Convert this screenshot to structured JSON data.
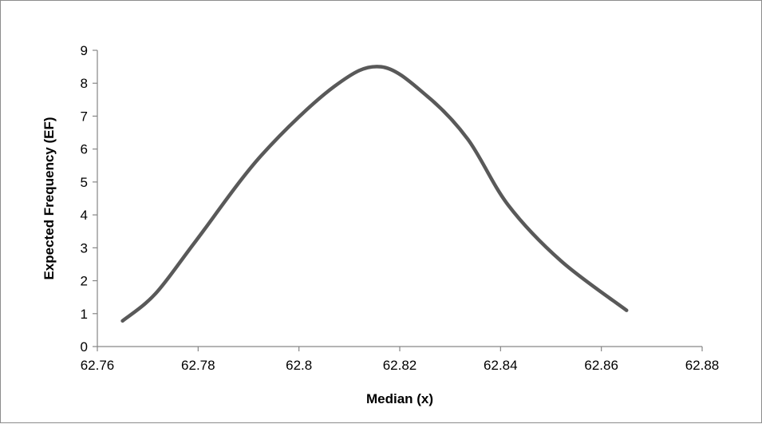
{
  "chart_data": {
    "type": "line",
    "title": "",
    "xlabel": "Median (x)",
    "ylabel": "Expected Frequency (EF)",
    "xlim": [
      62.76,
      62.88
    ],
    "ylim": [
      0,
      9
    ],
    "xticks": [
      62.76,
      62.78,
      62.8,
      62.82,
      62.84,
      62.86,
      62.88
    ],
    "xtick_labels": [
      "62.76",
      "62.78",
      "62.8",
      "62.82",
      "62.84",
      "62.86",
      "62.88"
    ],
    "yticks": [
      0,
      1,
      2,
      3,
      4,
      5,
      6,
      7,
      8,
      9
    ],
    "ytick_labels": [
      "0",
      "1",
      "2",
      "3",
      "4",
      "5",
      "6",
      "7",
      "8",
      "9"
    ],
    "grid": false,
    "legend": "none",
    "colors": {
      "line": "#595959",
      "axis": "#868686"
    },
    "series": [
      {
        "x": [
          62.765,
          62.7715,
          62.7795,
          62.7925,
          62.807,
          62.8163,
          62.8255,
          62.8335,
          62.8415,
          62.852,
          62.865
        ],
        "y": [
          0.78,
          1.6,
          3.2,
          5.8,
          7.9,
          8.5,
          7.6,
          6.3,
          4.3,
          2.6,
          1.1
        ]
      }
    ]
  }
}
